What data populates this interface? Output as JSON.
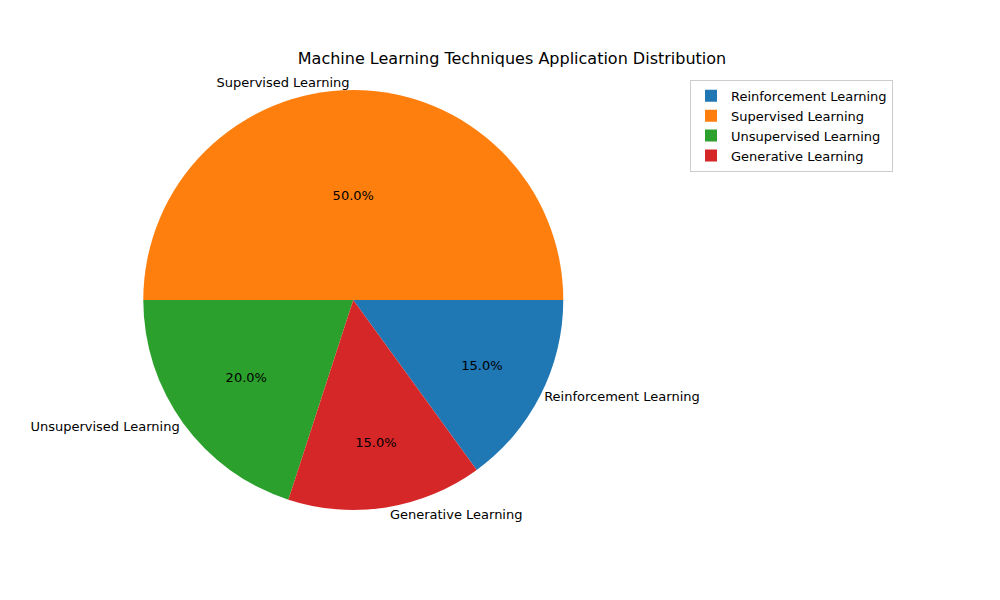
{
  "chart_data": {
    "type": "pie",
    "title": "Machine Learning Techniques Application Distribution",
    "categories": [
      "Reinforcement Learning",
      "Supervised Learning",
      "Unsupervised Learning",
      "Generative Learning"
    ],
    "values": [
      15,
      50,
      20,
      15
    ],
    "value_labels": [
      "15.0%",
      "50.0%",
      "20.0%",
      "15.0%"
    ],
    "colors": [
      "#1f77b4",
      "#ff7f0e",
      "#2ca02c",
      "#d62728"
    ],
    "data_labels": true,
    "legend": "upper right"
  }
}
